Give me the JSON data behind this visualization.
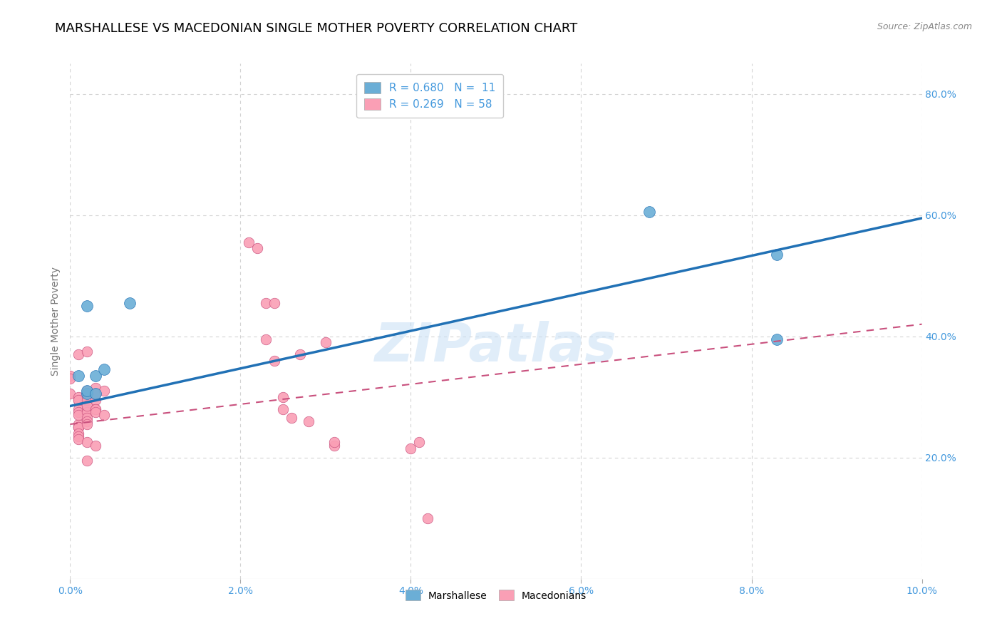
{
  "title": "MARSHALLESE VS MACEDONIAN SINGLE MOTHER POVERTY CORRELATION CHART",
  "source": "Source: ZipAtlas.com",
  "xlabel": "",
  "ylabel": "Single Mother Poverty",
  "xlim": [
    0.0,
    0.1
  ],
  "ylim": [
    0.0,
    0.85
  ],
  "xtick_labels": [
    "0.0%",
    "2.0%",
    "4.0%",
    "6.0%",
    "8.0%",
    "10.0%"
  ],
  "ytick_labels": [
    "20.0%",
    "40.0%",
    "60.0%",
    "80.0%"
  ],
  "ytick_vals": [
    0.2,
    0.4,
    0.6,
    0.8
  ],
  "xtick_vals": [
    0.0,
    0.02,
    0.04,
    0.06,
    0.08,
    0.1
  ],
  "watermark": "ZIPatlas",
  "legend_blue_r": "R = 0.680",
  "legend_blue_n": "N =  11",
  "legend_pink_r": "R = 0.269",
  "legend_pink_n": "N = 58",
  "blue_color": "#6baed6",
  "pink_color": "#fa9fb5",
  "blue_line_color": "#2171b5",
  "pink_line_color": "#c9517e",
  "axis_color": "#4499dd",
  "blue_scatter": [
    [
      0.001,
      0.335
    ],
    [
      0.002,
      0.305
    ],
    [
      0.002,
      0.31
    ],
    [
      0.002,
      0.45
    ],
    [
      0.003,
      0.335
    ],
    [
      0.003,
      0.305
    ],
    [
      0.004,
      0.345
    ],
    [
      0.007,
      0.455
    ],
    [
      0.068,
      0.605
    ],
    [
      0.083,
      0.535
    ],
    [
      0.083,
      0.395
    ]
  ],
  "pink_scatter": [
    [
      0.0,
      0.335
    ],
    [
      0.0,
      0.305
    ],
    [
      0.0,
      0.33
    ],
    [
      0.001,
      0.295
    ],
    [
      0.001,
      0.37
    ],
    [
      0.001,
      0.28
    ],
    [
      0.001,
      0.275
    ],
    [
      0.001,
      0.255
    ],
    [
      0.001,
      0.25
    ],
    [
      0.001,
      0.3
    ],
    [
      0.001,
      0.295
    ],
    [
      0.001,
      0.27
    ],
    [
      0.001,
      0.25
    ],
    [
      0.001,
      0.25
    ],
    [
      0.001,
      0.24
    ],
    [
      0.001,
      0.235
    ],
    [
      0.001,
      0.23
    ],
    [
      0.002,
      0.305
    ],
    [
      0.002,
      0.3
    ],
    [
      0.002,
      0.305
    ],
    [
      0.002,
      0.28
    ],
    [
      0.002,
      0.275
    ],
    [
      0.002,
      0.265
    ],
    [
      0.002,
      0.26
    ],
    [
      0.002,
      0.255
    ],
    [
      0.002,
      0.225
    ],
    [
      0.002,
      0.375
    ],
    [
      0.002,
      0.31
    ],
    [
      0.002,
      0.295
    ],
    [
      0.002,
      0.285
    ],
    [
      0.002,
      0.195
    ],
    [
      0.003,
      0.315
    ],
    [
      0.003,
      0.295
    ],
    [
      0.003,
      0.28
    ],
    [
      0.003,
      0.305
    ],
    [
      0.003,
      0.28
    ],
    [
      0.003,
      0.22
    ],
    [
      0.003,
      0.305
    ],
    [
      0.003,
      0.275
    ],
    [
      0.004,
      0.31
    ],
    [
      0.004,
      0.27
    ],
    [
      0.021,
      0.555
    ],
    [
      0.022,
      0.545
    ],
    [
      0.023,
      0.455
    ],
    [
      0.023,
      0.395
    ],
    [
      0.024,
      0.36
    ],
    [
      0.024,
      0.455
    ],
    [
      0.025,
      0.28
    ],
    [
      0.025,
      0.3
    ],
    [
      0.026,
      0.265
    ],
    [
      0.027,
      0.37
    ],
    [
      0.028,
      0.26
    ],
    [
      0.03,
      0.39
    ],
    [
      0.031,
      0.22
    ],
    [
      0.031,
      0.225
    ],
    [
      0.04,
      0.215
    ],
    [
      0.041,
      0.225
    ],
    [
      0.042,
      0.1
    ]
  ],
  "blue_trendline_x": [
    0.0,
    0.1
  ],
  "blue_trendline_y": [
    0.285,
    0.595
  ],
  "pink_trendline_x": [
    0.0,
    0.1
  ],
  "pink_trendline_y": [
    0.255,
    0.42
  ],
  "grid_color": "#d3d3d3",
  "background_color": "#ffffff",
  "title_fontsize": 13,
  "label_fontsize": 10,
  "tick_fontsize": 10,
  "source_fontsize": 9
}
